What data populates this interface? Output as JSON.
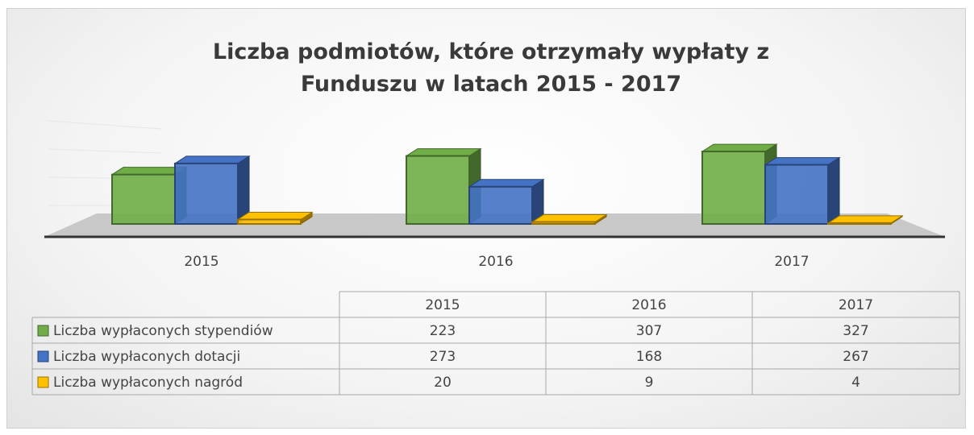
{
  "chart_data": {
    "type": "bar",
    "title": "Liczba podmiotów, które otrzymały wypłaty z Funduszu w latach 2015 - 2017",
    "categories": [
      "2015",
      "2016",
      "2017"
    ],
    "series": [
      {
        "name": "Liczba wypłaconych stypendiów",
        "color": "#70ad47",
        "values": [
          223,
          307,
          327
        ]
      },
      {
        "name": "Liczba wypłaconych dotacji",
        "color": "#4472c4",
        "values": [
          273,
          168,
          267
        ]
      },
      {
        "name": "Liczba wypłaconych nagród",
        "color": "#ffc000",
        "values": [
          20,
          9,
          4
        ]
      }
    ],
    "ylim": [
      0,
      400
    ]
  }
}
